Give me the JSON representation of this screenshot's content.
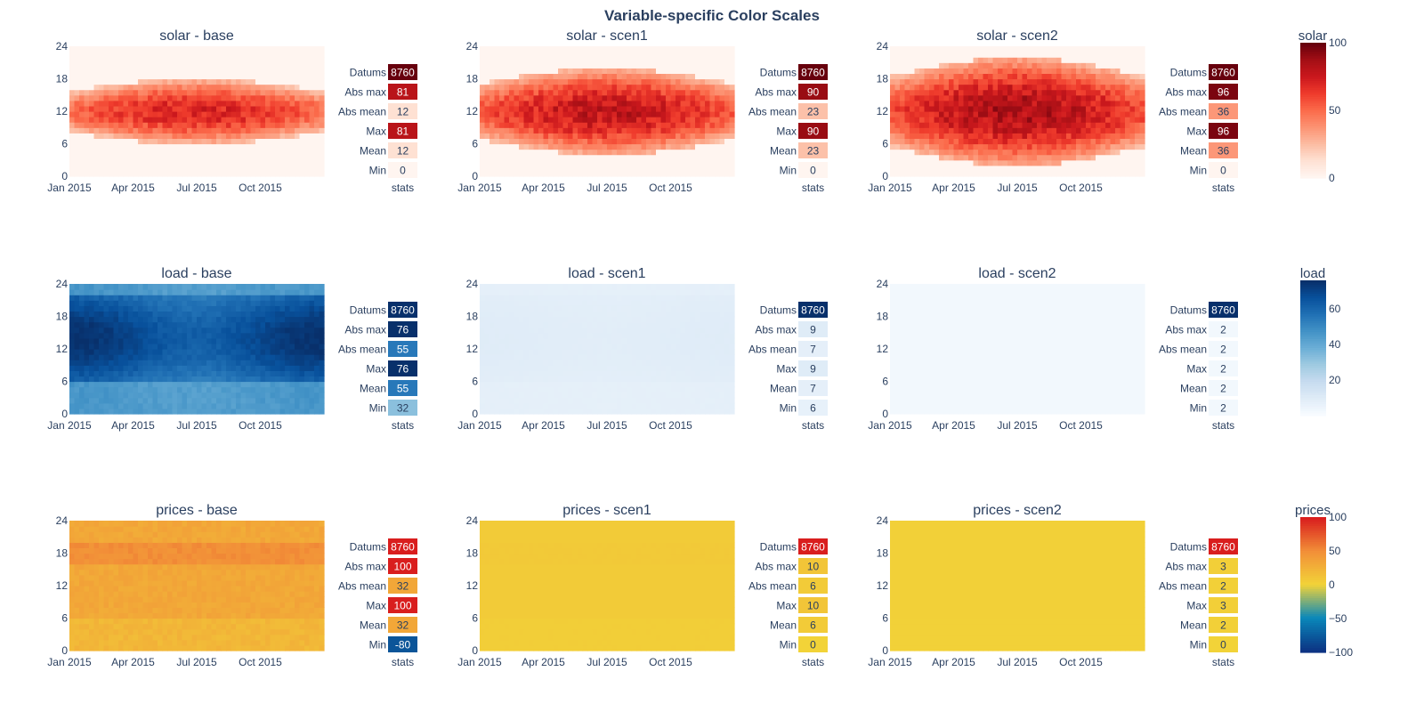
{
  "title": "Variable-specific Color Scales",
  "x_ticks": [
    "Jan 2015",
    "Apr 2015",
    "Jul 2015",
    "Oct 2015"
  ],
  "y_ticks": [
    "0",
    "6",
    "12",
    "18",
    "24"
  ],
  "stats_axis_label": "stats",
  "stat_labels": [
    "Datums",
    "Abs max",
    "Abs mean",
    "Max",
    "Mean",
    "Min"
  ],
  "chart_data": [
    {
      "type": "heatmap",
      "variable": "solar",
      "colorscale": "Reds",
      "colorbar_title": "solar",
      "colorbar_range": [
        0,
        100
      ],
      "colorbar_ticks": [
        "0",
        "50",
        "100"
      ],
      "panels": [
        {
          "title": "solar - base",
          "stats": [
            "8760",
            "81",
            "12",
            "81",
            "12",
            "0"
          ],
          "daylight_width": 6,
          "peak": 81,
          "mean": 12
        },
        {
          "title": "solar - scen1",
          "stats": [
            "8760",
            "90",
            "23",
            "90",
            "23",
            "0"
          ],
          "daylight_width": 8,
          "peak": 90,
          "mean": 23
        },
        {
          "title": "solar - scen2",
          "stats": [
            "8760",
            "96",
            "36",
            "96",
            "36",
            "0"
          ],
          "daylight_width": 10,
          "peak": 96,
          "mean": 36
        }
      ]
    },
    {
      "type": "heatmap",
      "variable": "load",
      "colorscale": "Blues",
      "colorbar_title": "load",
      "colorbar_range": [
        0,
        76
      ],
      "colorbar_ticks": [
        "20",
        "40",
        "60"
      ],
      "panels": [
        {
          "title": "load - base",
          "stats": [
            "8760",
            "76",
            "55",
            "76",
            "55",
            "32"
          ],
          "min": 32,
          "max": 76
        },
        {
          "title": "load - scen1",
          "stats": [
            "8760",
            "9",
            "7",
            "9",
            "7",
            "6"
          ],
          "min": 6,
          "max": 9
        },
        {
          "title": "load - scen2",
          "stats": [
            "8760",
            "2",
            "2",
            "2",
            "2",
            "2"
          ],
          "min": 2,
          "max": 2
        }
      ]
    },
    {
      "type": "heatmap",
      "variable": "prices",
      "colorscale": "Portland",
      "colorbar_title": "prices",
      "colorbar_range": [
        -100,
        100
      ],
      "colorbar_ticks": [
        "−100",
        "−50",
        "0",
        "50",
        "100"
      ],
      "panels": [
        {
          "title": "prices - base",
          "stats": [
            "8760",
            "100",
            "32",
            "100",
            "32",
            "-80"
          ],
          "min": -80,
          "max": 100,
          "mean": 32
        },
        {
          "title": "prices - scen1",
          "stats": [
            "8760",
            "10",
            "6",
            "10",
            "6",
            "0"
          ],
          "min": 0,
          "max": 10,
          "mean": 6
        },
        {
          "title": "prices - scen2",
          "stats": [
            "8760",
            "3",
            "2",
            "3",
            "2",
            "0"
          ],
          "min": 0,
          "max": 3,
          "mean": 2
        }
      ]
    }
  ]
}
